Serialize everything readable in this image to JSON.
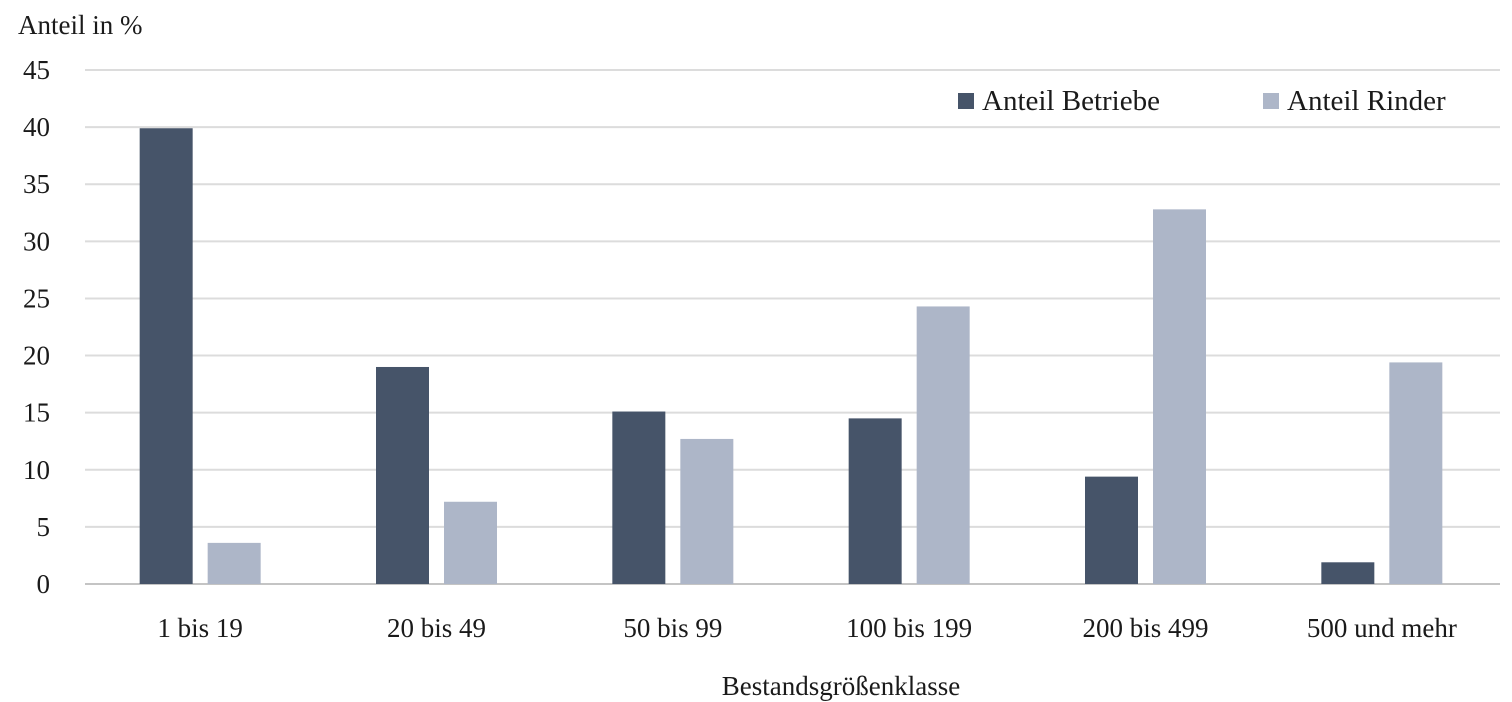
{
  "chart_data": {
    "type": "bar",
    "ylabel": "Anteil in %",
    "xlabel": "Bestandsgrößenklasse",
    "ylim": [
      0,
      45
    ],
    "yticks": [
      "0",
      "5",
      "10",
      "15",
      "20",
      "25",
      "30",
      "35",
      "40",
      "45"
    ],
    "grid": "horizontal",
    "legend_position": "top-right",
    "categories": [
      "1 bis 19",
      "20 bis 49",
      "50 bis 99",
      "100 bis 199",
      "200 bis 499",
      "500 und mehr"
    ],
    "series": [
      {
        "name": "Anteil Betriebe",
        "color": "#465469",
        "values": [
          39.9,
          19.0,
          15.1,
          14.5,
          9.4,
          1.9
        ]
      },
      {
        "name": "Anteil Rinder",
        "color": "#adb6c8",
        "values": [
          3.6,
          7.2,
          12.7,
          24.3,
          32.8,
          19.4
        ]
      }
    ]
  }
}
